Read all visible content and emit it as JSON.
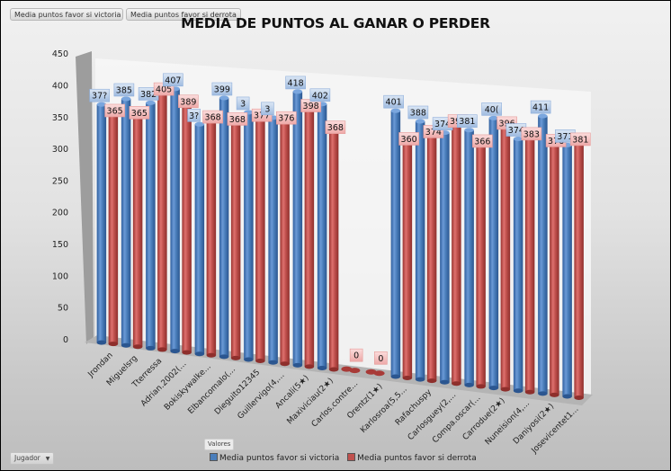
{
  "pivot_fields": {
    "value_buttons": [
      "Media puntos favor si victoria",
      "Media puntos favor si derrota"
    ],
    "values_label": "Valores",
    "axis_field": "Jugador",
    "axis_field_icon": "dropdown-arrow-icon"
  },
  "colors": {
    "victoria": "#4a7ebb",
    "derrota": "#c0504d",
    "victoria_label_bg": "#b9cde5",
    "derrota_label_bg": "#f2c4c3"
  },
  "chart_data": {
    "type": "bar",
    "subtype": "3d-clustered-cylinder",
    "title": "MEDIA DE PUNTOS AL GANAR O PERDER",
    "xlabel": "",
    "ylabel": "",
    "ylim": [
      0,
      450
    ],
    "yticks": [
      0,
      50,
      100,
      150,
      200,
      250,
      300,
      350,
      400,
      450
    ],
    "grid": false,
    "legend_position": "bottom",
    "categories": [
      "Jrondan",
      "Miguelsrg",
      "Tterressa",
      "Adrian.2002(...",
      "Bokiskywalke...",
      "Elbancomalo(...",
      "Dieguito12345",
      "Guillervigo(4,...",
      "Ancali(5★)",
      "Maxiviciau(2★)",
      "Carlos.contre...",
      "Orentz(1★)",
      "Karlosroa(5,5...",
      "Rafachuspy",
      "Carlosguey(2,...",
      "Compa.oscar(...",
      "Carrodue(2★)",
      "Nuneision(4,...",
      "Daniyosi(2★)",
      "Josevicentet1..."
    ],
    "series": [
      {
        "name": "Media puntos favor si victoria",
        "values": [
          373,
          385,
          382,
          407,
          355,
          399,
          380,
          375,
          418,
          402,
          0,
          0,
          401,
          388,
          374,
          381,
          402,
          374,
          411,
          371
        ],
        "labels": [
          "37?",
          "385",
          "382",
          "407",
          "3?",
          "399",
          "3",
          "3",
          "418",
          "402",
          "",
          "",
          "401",
          "388",
          "374",
          "381",
          "40(",
          "374",
          "411",
          "371"
        ]
      },
      {
        "name": "Media puntos favor si derrota",
        "values": [
          365,
          365,
          405,
          389,
          368,
          368,
          377,
          376,
          398,
          368,
          0,
          0,
          360,
          374,
          393,
          366,
          396,
          383,
          376,
          381
        ],
        "labels": [
          "365",
          "365",
          "405",
          "389",
          "368",
          "368",
          "377",
          "376",
          "398",
          "368",
          "0",
          "0",
          "360",
          "374",
          "393",
          "366",
          "396",
          "383",
          "376",
          "381"
        ]
      }
    ]
  }
}
